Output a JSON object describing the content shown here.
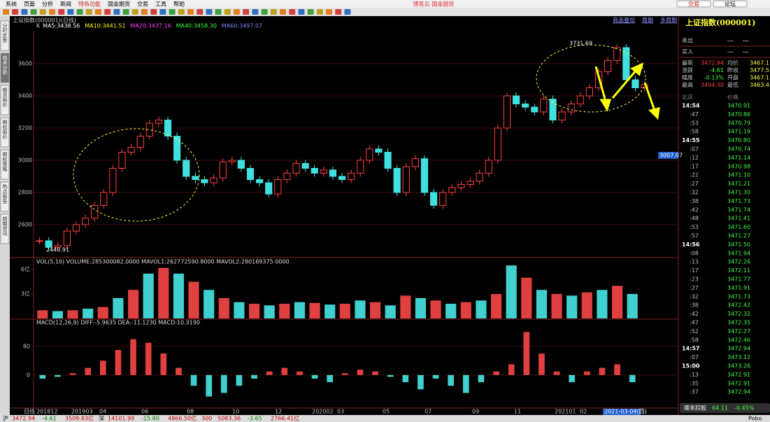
{
  "menu": [
    "系统",
    "页面",
    "分析",
    "新闻",
    "特色功能",
    "国金期货",
    "交易",
    "工具",
    "帮助"
  ],
  "app_title": "博易云-国金期货",
  "top_buttons": [
    "交易",
    "论坛"
  ],
  "side_tabs": [
    "分时走势",
    "技术分析",
    "期货报价",
    "期权报价",
    "期权策略",
    "热点报告",
    "越期资讯"
  ],
  "chart": {
    "header": "上证指数(000001)(日线)",
    "toolbar_right": [
      "商品叠加",
      "周期",
      "多周期"
    ],
    "ma_legend": [
      {
        "text": "K",
        "color": "#cccccc"
      },
      {
        "text": "MA5:3438.56",
        "color": "#ffffff"
      },
      {
        "text": "MA10:3441.51",
        "color": "#ffff00"
      },
      {
        "text": "MA20:3437.16",
        "color": "#ff40ff"
      },
      {
        "text": "MA40:3458.30",
        "color": "#40ff40"
      },
      {
        "text": "MA60:3497.07",
        "color": "#8080ff"
      }
    ],
    "price": {
      "type": "candlestick",
      "ylim": [
        2400,
        3800
      ],
      "yticks": [
        2600,
        2800,
        3000,
        3200,
        3400,
        3600
      ],
      "closes": [
        2500,
        2460,
        2470,
        2560,
        2600,
        2640,
        2720,
        2800,
        2950,
        3050,
        3080,
        3150,
        3230,
        3250,
        3150,
        3000,
        2900,
        2880,
        2860,
        2890,
        2990,
        3000,
        2950,
        2880,
        2860,
        2790,
        2880,
        2920,
        2980,
        2950,
        2920,
        2940,
        2900,
        2880,
        2920,
        3000,
        3070,
        3050,
        2950,
        2800,
        2960,
        3010,
        2800,
        2720,
        2800,
        2830,
        2850,
        2870,
        2920,
        3000,
        3200,
        3400,
        3350,
        3330,
        3300,
        3380,
        3250,
        3300,
        3350,
        3400,
        3450,
        3550,
        3620,
        3700,
        3500,
        3450,
        3470
      ],
      "high_label": "3731.69",
      "low_label": "2440.91",
      "cursor_label": "3007.07"
    },
    "volume": {
      "title": "VOL(5,10) VOLUME:285300082.0000 MAVOL1:262772590.8000 MAVOL2:280169375.0000",
      "ylim": [
        0,
        7.3
      ],
      "yticks": [
        {
          "value": 3,
          "label": "3亿"
        },
        {
          "value": 6,
          "label": "6亿"
        }
      ],
      "values": [
        1.0,
        0.9,
        1.0,
        1.2,
        1.4,
        2.5,
        3.5,
        5.5,
        6.2,
        5.5,
        4.5,
        3.5,
        2.5,
        2.0,
        1.8,
        1.6,
        1.8,
        2.0,
        1.9,
        1.7,
        1.8,
        2.2,
        2.0,
        1.6,
        2.8,
        2.5,
        2.2,
        1.8,
        2.0,
        2.2,
        3.0,
        6.5,
        5.0,
        3.5,
        3.0,
        2.8,
        3.2,
        3.5,
        4.0,
        3.0
      ]
    },
    "macd": {
      "title": "MACD(12,26,9) DIFF:-5.9635 DEA:-11.1230 MACD:10.3190",
      "ylim": [
        -92,
        152
      ],
      "yticks": [
        0,
        80
      ],
      "values": [
        -10,
        -5,
        5,
        20,
        40,
        70,
        100,
        90,
        60,
        20,
        -30,
        -60,
        -50,
        -30,
        -10,
        10,
        20,
        10,
        -10,
        -20,
        5,
        15,
        10,
        -5,
        -20,
        -40,
        -10,
        -30,
        -50,
        -20,
        10,
        30,
        120,
        60,
        10,
        -20,
        10,
        20,
        30,
        -20
      ]
    },
    "x_labels": [
      "日线",
      "201812",
      "201903",
      "04",
      "06",
      "08",
      "10",
      "12",
      "202002",
      "03",
      "05",
      "07",
      "09",
      "11",
      "202101",
      "02",
      "2021-03-04(四)"
    ]
  },
  "quote_panel": {
    "title": "上证指数(000001)",
    "bid_ask": [
      {
        "label": "卖出",
        "a": "---",
        "b": "---"
      },
      {
        "label": "买入",
        "a": "---",
        "b": "---"
      }
    ],
    "stats": [
      [
        "最新",
        "3472.94",
        "均价",
        "3467.1"
      ],
      [
        "涨跌",
        "-4.61",
        "昨收",
        "3477.5"
      ],
      [
        "幅度",
        "-0.13%",
        "开盘",
        "3467.1"
      ],
      [
        "最高",
        "3494.30",
        "最低",
        "3463.4"
      ]
    ],
    "list_header": [
      "北京",
      "价格"
    ],
    "times": [
      "14:54",
      ":47",
      ":53",
      ":58",
      "14:55",
      ":07",
      ":12",
      ":17",
      ":22",
      ":27",
      ":32",
      ":38",
      ":42",
      ":48",
      ":53",
      ":57",
      "14:56",
      ":08",
      ":13",
      ":17",
      ":23",
      ":27",
      ":32",
      ":38",
      ":42",
      ":47",
      ":52",
      ":58",
      "14:57",
      ":07",
      "15:00",
      ":13",
      ":35",
      ":37"
    ],
    "prices": [
      "3470.91",
      "3470.86",
      "3470.79",
      "3471.19",
      "3470.80",
      "3470.74",
      "3471.14",
      "3470.98",
      "3471.10",
      "3471.21",
      "3471.30",
      "3471.73",
      "3471.74",
      "3471.41",
      "3471.60",
      "3471.27",
      "3471.50",
      "3471.94",
      "3472.26",
      "3472.11",
      "3471.77",
      "3471.91",
      "3471.73",
      "3472.42",
      "3472.32",
      "3472.35",
      "3472.27",
      "3472.46",
      "3472.94",
      "3473.12",
      "3473.26",
      "3472.91",
      "3472.91",
      "3472.94"
    ],
    "ticker": [
      "顺丰控股",
      "64.11",
      "-0.45%"
    ]
  },
  "status_bar": [
    "沪",
    "3472.94",
    "-4.61",
    "3509.83亿",
    "深",
    "14101.99",
    "-15.80",
    "4866.50亿",
    "300",
    "5083.36",
    "-3.65",
    "2766.41亿",
    "Pobo"
  ]
}
